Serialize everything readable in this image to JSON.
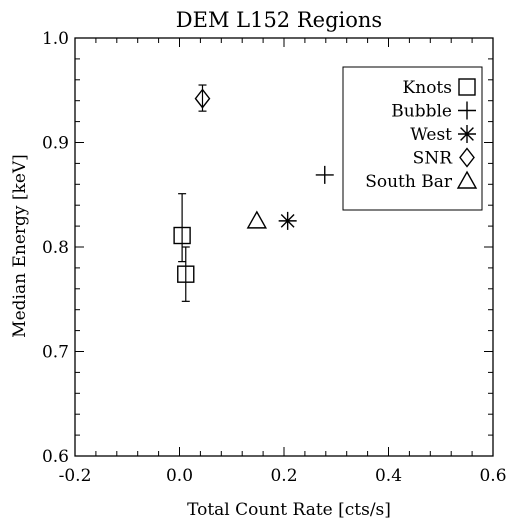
{
  "chart_data": {
    "type": "scatter",
    "title": "DEM L152 Regions",
    "xlabel": "Total Count Rate [cts/s]",
    "ylabel": "Median Energy [keV]",
    "xlim": [
      -0.2,
      0.6
    ],
    "ylim": [
      0.6,
      1.0
    ],
    "xticks": [
      -0.2,
      0.0,
      0.2,
      0.4,
      0.6
    ],
    "yticks": [
      0.6,
      0.7,
      0.8,
      0.9,
      1.0
    ],
    "xtick_labels": [
      "-0.2",
      "0.0",
      "0.2",
      "0.4",
      "0.6"
    ],
    "ytick_labels": [
      "0.6",
      "0.7",
      "0.8",
      "0.9",
      "1.0"
    ],
    "grid": false,
    "legend_position": "top-right",
    "series": [
      {
        "name": "Knots",
        "marker": "square",
        "points": [
          {
            "x": 0.005,
            "y": 0.811,
            "yerr": [
              0.786,
              0.851
            ]
          },
          {
            "x": 0.012,
            "y": 0.774,
            "yerr": [
              0.748,
              0.8
            ]
          }
        ]
      },
      {
        "name": "Bubble",
        "marker": "plus",
        "points": [
          {
            "x": 0.278,
            "y": 0.869
          }
        ]
      },
      {
        "name": "West",
        "marker": "asterisk",
        "points": [
          {
            "x": 0.207,
            "y": 0.825
          }
        ]
      },
      {
        "name": "SNR",
        "marker": "diamond",
        "points": [
          {
            "x": 0.044,
            "y": 0.942,
            "yerr": [
              0.93,
              0.955
            ]
          }
        ]
      },
      {
        "name": "South Bar",
        "marker": "triangle",
        "points": [
          {
            "x": 0.148,
            "y": 0.825
          }
        ]
      }
    ]
  }
}
